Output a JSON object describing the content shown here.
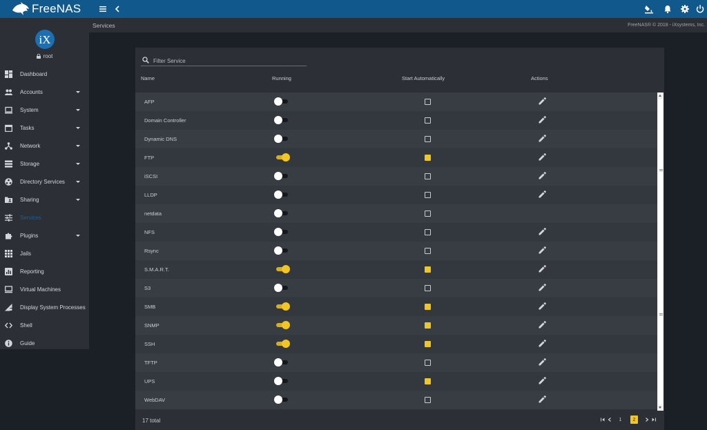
{
  "app": {
    "name": "FreeNAS",
    "breadcrumb": "Services",
    "copyright": "FreeNAS® © 2018 - iXsystems, Inc."
  },
  "user": {
    "name": "root",
    "avatar_text": "iX"
  },
  "sidebar": {
    "items": [
      {
        "label": "Dashboard",
        "icon": "dashboard-icon",
        "has_caret": false,
        "active": false
      },
      {
        "label": "Accounts",
        "icon": "people-icon",
        "has_caret": true,
        "active": false
      },
      {
        "label": "System",
        "icon": "laptop-icon",
        "has_caret": true,
        "active": false
      },
      {
        "label": "Tasks",
        "icon": "calendar-icon",
        "has_caret": true,
        "active": false
      },
      {
        "label": "Network",
        "icon": "network-icon",
        "has_caret": true,
        "active": false
      },
      {
        "label": "Storage",
        "icon": "storage-icon",
        "has_caret": true,
        "active": false
      },
      {
        "label": "Directory Services",
        "icon": "directory-icon",
        "has_caret": true,
        "active": false
      },
      {
        "label": "Sharing",
        "icon": "folder-shared-icon",
        "has_caret": true,
        "active": false
      },
      {
        "label": "Services",
        "icon": "tune-icon",
        "has_caret": false,
        "active": true
      },
      {
        "label": "Plugins",
        "icon": "puzzle-icon",
        "has_caret": true,
        "active": false
      },
      {
        "label": "Jails",
        "icon": "grid-icon",
        "has_caret": false,
        "active": false
      },
      {
        "label": "Reporting",
        "icon": "chart-icon",
        "has_caret": false,
        "active": false
      },
      {
        "label": "Virtual Machines",
        "icon": "computer-icon",
        "has_caret": false,
        "active": false
      },
      {
        "label": "Display System Processes",
        "icon": "signal-icon",
        "has_caret": false,
        "active": false
      },
      {
        "label": "Shell",
        "icon": "code-icon",
        "has_caret": false,
        "active": false
      },
      {
        "label": "Guide",
        "icon": "info-icon",
        "has_caret": false,
        "active": false
      }
    ]
  },
  "filter": {
    "placeholder": "Filter Service"
  },
  "table": {
    "headers": {
      "name": "Name",
      "running": "Running",
      "auto": "Start Automatically",
      "actions": "Actions"
    },
    "rows": [
      {
        "name": "AFP",
        "running": false,
        "auto": false,
        "editable": true
      },
      {
        "name": "Domain Controller",
        "running": false,
        "auto": false,
        "editable": true
      },
      {
        "name": "Dynamic DNS",
        "running": false,
        "auto": false,
        "editable": true
      },
      {
        "name": "FTP",
        "running": true,
        "auto": true,
        "editable": true
      },
      {
        "name": "iSCSI",
        "running": false,
        "auto": false,
        "editable": true
      },
      {
        "name": "LLDP",
        "running": false,
        "auto": false,
        "editable": true
      },
      {
        "name": "netdata",
        "running": false,
        "auto": false,
        "editable": false
      },
      {
        "name": "NFS",
        "running": false,
        "auto": false,
        "editable": true
      },
      {
        "name": "Rsync",
        "running": false,
        "auto": false,
        "editable": true
      },
      {
        "name": "S.M.A.R.T.",
        "running": true,
        "auto": true,
        "editable": true
      },
      {
        "name": "S3",
        "running": false,
        "auto": false,
        "editable": true
      },
      {
        "name": "SMB",
        "running": true,
        "auto": true,
        "editable": true
      },
      {
        "name": "SNMP",
        "running": true,
        "auto": true,
        "editable": true
      },
      {
        "name": "SSH",
        "running": true,
        "auto": true,
        "editable": true
      },
      {
        "name": "TFTP",
        "running": false,
        "auto": false,
        "editable": true
      },
      {
        "name": "UPS",
        "running": false,
        "auto": true,
        "editable": true
      },
      {
        "name": "WebDAV",
        "running": false,
        "auto": false,
        "editable": true
      }
    ]
  },
  "footer": {
    "total": "17 total",
    "pages": [
      "1",
      "2"
    ],
    "current_page": "2"
  },
  "colors": {
    "topbar": "#11598c",
    "accent": "#f0c528",
    "active_nav": "#1b5f94"
  }
}
